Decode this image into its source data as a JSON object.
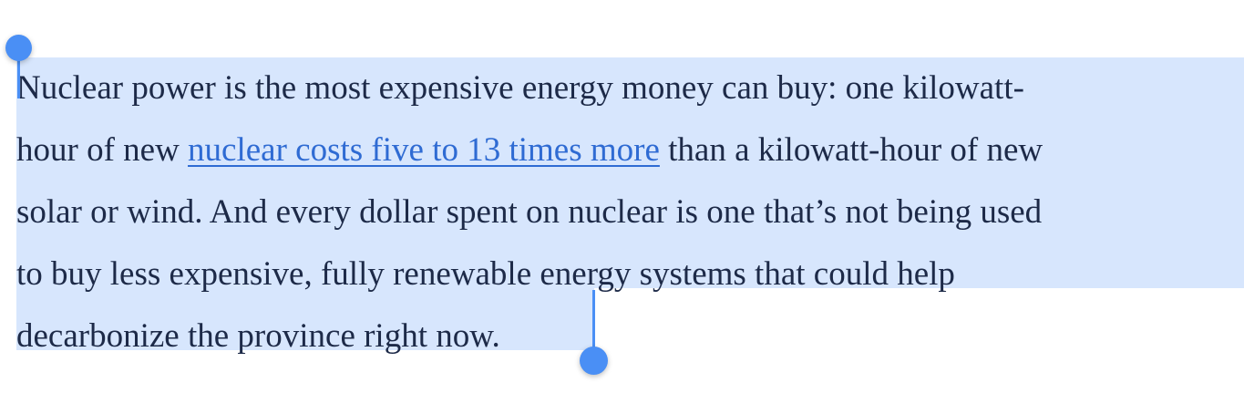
{
  "paragraph": {
    "lines": [
      {
        "text": "Nuclear power is the most expensive energy money can buy: one kilowatt-"
      },
      {
        "before": "hour of new ",
        "link": "nuclear costs five to 13 times more",
        "after": " than a kilowatt-hour of new"
      },
      {
        "text": "solar or wind. And every dollar spent on nuclear is one that’s not being used"
      },
      {
        "text": "to buy less expensive, fully renewable energy systems that could help"
      },
      {
        "text": "decarbonize the province right now."
      }
    ]
  }
}
